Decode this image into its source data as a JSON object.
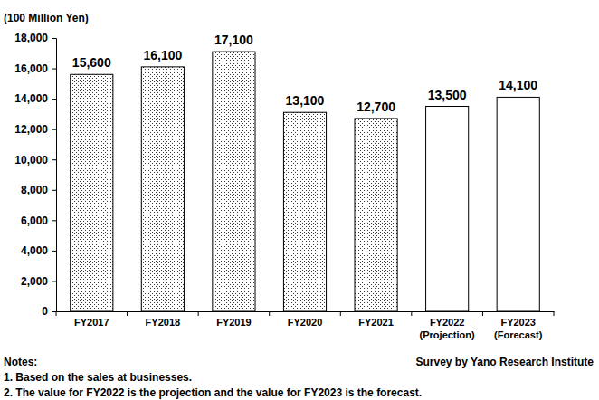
{
  "chart_data": {
    "type": "bar",
    "ylabel": "(100 Million Yen)",
    "categories": [
      "FY2017",
      "FY2018",
      "FY2019",
      "FY2020",
      "FY2021",
      "FY2022\n(Projection)",
      "FY2023\n(Forecast)"
    ],
    "values": [
      15600,
      16100,
      17100,
      13100,
      12700,
      13500,
      14100
    ],
    "value_labels": [
      "15,600",
      "16,100",
      "17,100",
      "13,100",
      "12,700",
      "13,500",
      "14,100"
    ],
    "data_labels": true,
    "colors": [
      "#d9d9d9",
      "#d9d9d9",
      "#d9d9d9",
      "#d9d9d9",
      "#d9d9d9",
      "#ffffff",
      "#ffffff"
    ],
    "ylim": [
      0,
      18000
    ],
    "yticks": [
      0,
      {
        "value": 2000,
        "label": "2,000"
      },
      {
        "value": 4000,
        "label": "4,000"
      },
      {
        "value": 6000,
        "label": "6,000"
      },
      {
        "value": 8000,
        "label": "8,000"
      },
      {
        "value": 10000,
        "label": "10,000"
      },
      {
        "value": 12000,
        "label": "12,000"
      },
      {
        "value": 14000,
        "label": "14,000"
      },
      {
        "value": 16000,
        "label": "16,000"
      },
      {
        "value": 18000,
        "label": "18,000"
      }
    ],
    "grid": false,
    "notes": [
      "Notes:",
      "1. Based on the sales at businesses.",
      "2. The value for FY2022 is the projection and the value for FY2023 is the forecast."
    ],
    "source": "Survey by Yano Research Institute"
  }
}
